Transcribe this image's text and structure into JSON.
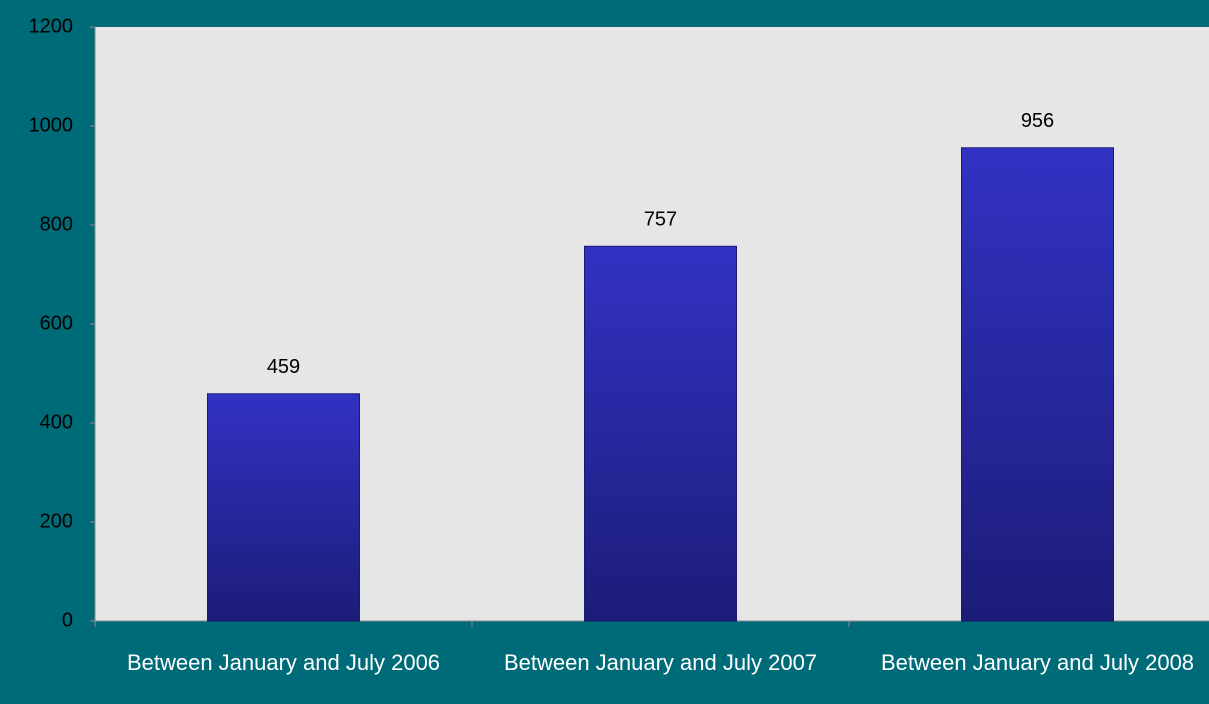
{
  "chart_data": {
    "type": "bar",
    "categories": [
      "Between January and July 2006",
      "Between January and July 2007",
      "Between January and July 2008"
    ],
    "values": [
      459,
      757,
      956
    ],
    "color": "#2a2aa8",
    "ylim": [
      0,
      1200
    ],
    "yticks": [
      0,
      200,
      400,
      600,
      800,
      1000,
      1200
    ]
  }
}
